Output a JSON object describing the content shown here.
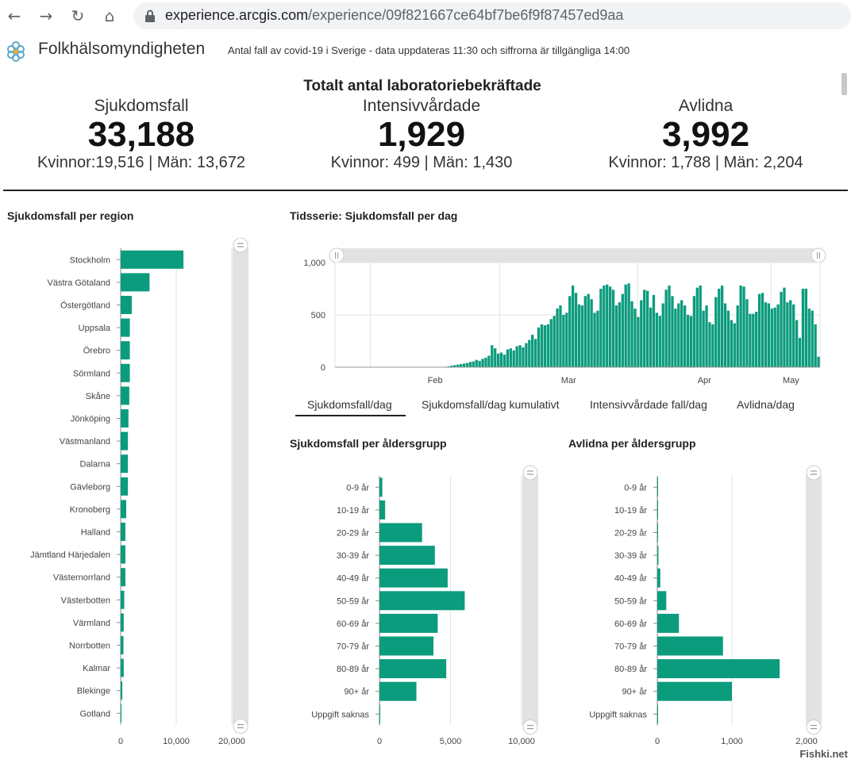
{
  "browser": {
    "url_host": "experience.arcgis.com",
    "url_path": "/experience/09f821667ce64bf7be6f9f87457ed9aa"
  },
  "app": {
    "name": "Folkhälsomyndigheten",
    "subtitle": "Antal fall av covid-19 i Sverige - data uppdateras 11:30 och siffrorna är tillgängliga 14:00"
  },
  "stats": {
    "title": "Totalt antal laboratoriebekräftade",
    "items": [
      {
        "label": "Sjukdomsfall",
        "value": "33,188",
        "sub": "Kvinnor:19,516 | Män: 13,672"
      },
      {
        "label": "Intensivvårdade",
        "value": "1,929",
        "sub": "Kvinnor: 499 | Män: 1,430"
      },
      {
        "label": "Avlidna",
        "value": "3,992",
        "sub": "Kvinnor: 1,788 | Män: 2,204"
      }
    ]
  },
  "sections": {
    "region": "Sjukdomsfall per region",
    "timeseries": "Tidsserie: Sjukdomsfall per dag",
    "age_cases": "Sjukdomsfall per åldersgrupp",
    "age_deaths": "Avlidna per åldersgrupp"
  },
  "tabs": [
    "Sjukdomsfall/dag",
    "Sjukdomsfall/dag kumulativt",
    "Intensivvårdade fall/dag",
    "Avlidna/dag"
  ],
  "watermark": "Fishki.net",
  "colors": {
    "bar": "#0b9b7d",
    "scroll": "#e2e2e2"
  },
  "chart_data": [
    {
      "id": "region",
      "type": "bar",
      "orientation": "horizontal",
      "categories": [
        "Stockholm",
        "Västra Götaland",
        "Östergötland",
        "Uppsala",
        "Örebro",
        "Sörmland",
        "Skåne",
        "Jönköping",
        "Västmanland",
        "Dalarna",
        "Gävleborg",
        "Kronoberg",
        "Halland",
        "Jämtland Härjedalen",
        "Västernorrland",
        "Västerbotten",
        "Värmland",
        "Norrbotten",
        "Kalmar",
        "Blekinge",
        "Gotland"
      ],
      "values": [
        11300,
        5200,
        2000,
        1650,
        1650,
        1650,
        1550,
        1400,
        1300,
        1300,
        1300,
        1000,
        850,
        850,
        850,
        650,
        550,
        500,
        550,
        300,
        100
      ],
      "ticks": [
        0,
        10000,
        20000
      ],
      "tick_labels": [
        "0",
        "10,000",
        "20,000"
      ],
      "xlim": [
        0,
        20000
      ]
    },
    {
      "id": "timeseries",
      "type": "bar",
      "x_start": "2020-01-24",
      "x_end": "2020-05-12",
      "values": [
        1,
        1,
        1,
        1,
        1,
        1,
        1,
        1,
        1,
        1,
        1,
        1,
        1,
        1,
        1,
        1,
        1,
        1,
        1,
        1,
        1,
        1,
        1,
        1,
        1,
        1,
        1,
        1,
        1,
        1,
        1,
        1,
        1,
        1,
        2,
        5,
        8,
        15,
        20,
        25,
        30,
        35,
        40,
        50,
        55,
        70,
        60,
        80,
        90,
        110,
        210,
        180,
        130,
        140,
        120,
        170,
        180,
        160,
        200,
        210,
        190,
        230,
        260,
        310,
        270,
        380,
        410,
        400,
        410,
        460,
        490,
        560,
        590,
        500,
        520,
        680,
        780,
        710,
        600,
        590,
        680,
        700,
        650,
        520,
        540,
        750,
        780,
        790,
        770,
        740,
        590,
        620,
        700,
        790,
        800,
        630,
        560,
        480,
        640,
        740,
        730,
        570,
        690,
        520,
        490,
        610,
        740,
        780,
        680,
        560,
        610,
        640,
        590,
        500,
        490,
        680,
        760,
        780,
        540,
        590,
        430,
        410,
        670,
        750,
        780,
        610,
        540,
        450,
        420,
        590,
        780,
        770,
        650,
        510,
        510,
        530,
        700,
        710,
        620,
        610,
        560,
        570,
        600,
        720,
        760,
        620,
        640,
        600,
        450,
        280,
        750,
        750,
        560,
        540,
        410,
        100
      ],
      "yticks": [
        0,
        500,
        1000
      ],
      "ytick_labels": [
        "0",
        "500",
        "1,000"
      ],
      "xticks": [
        "Feb",
        "Mar",
        "Apr",
        "May"
      ],
      "ylim": [
        0,
        1000
      ]
    },
    {
      "id": "age_cases",
      "type": "bar",
      "orientation": "horizontal",
      "categories": [
        "0-9 år",
        "10-19 år",
        "20-29 år",
        "30-39 år",
        "40-49 år",
        "50-59 år",
        "60-69 år",
        "70-79 år",
        "80-89 år",
        "90+ år",
        "Uppgift saknas"
      ],
      "values": [
        200,
        400,
        3000,
        3900,
        4800,
        6000,
        4100,
        3800,
        4700,
        2600,
        20
      ],
      "ticks": [
        0,
        5000,
        10000
      ],
      "tick_labels": [
        "0",
        "5,000",
        "10,000"
      ],
      "xlim": [
        0,
        10000
      ]
    },
    {
      "id": "age_deaths",
      "type": "bar",
      "orientation": "horizontal",
      "categories": [
        "0-9 år",
        "10-19 år",
        "20-29 år",
        "30-39 år",
        "40-49 år",
        "50-59 år",
        "60-69 år",
        "70-79 år",
        "80-89 år",
        "90+ år",
        "Uppgift saknas"
      ],
      "values": [
        1,
        2,
        10,
        15,
        40,
        120,
        290,
        880,
        1640,
        1000,
        5
      ],
      "ticks": [
        0,
        1000,
        2000
      ],
      "tick_labels": [
        "0",
        "1,000",
        "2,000"
      ],
      "xlim": [
        0,
        2000
      ]
    }
  ]
}
